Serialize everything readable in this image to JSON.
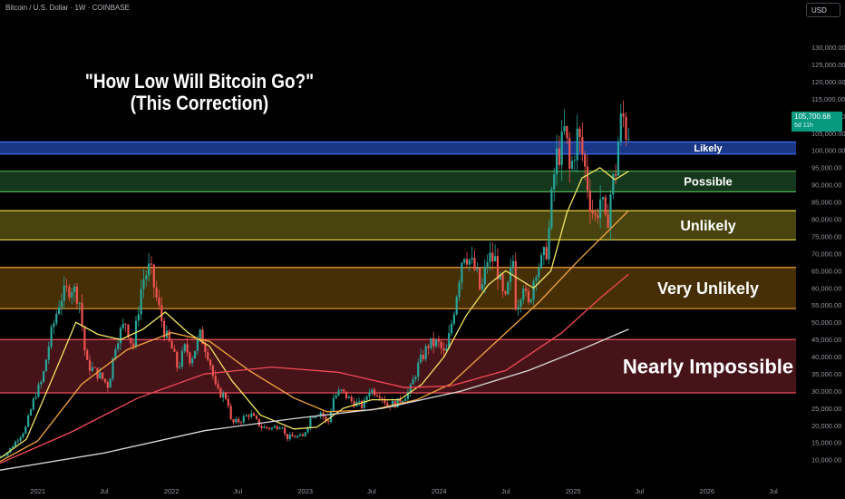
{
  "header": {
    "symbol_text": "Bitcoin / U.S. Dollar · 1W · COINBASE",
    "currency_button": "USD"
  },
  "title_lines": [
    "\"How Low Will Bitcoin Go?\"",
    "(This Correction)"
  ],
  "price_tag": {
    "price": "105,700.68",
    "countdown": "5d 11h"
  },
  "colors": {
    "candle_up": "#26a69a",
    "candle_down": "#ef5350",
    "sma_yellow": "#f5e663",
    "sma_orange": "#f6a640",
    "sma_red": "#f44a57",
    "sma_white": "#d9d9d9",
    "price_tag": "#089981"
  },
  "chart_data": {
    "type": "candlestick",
    "y_axis": {
      "ticks": [
        10000,
        15000,
        20000,
        25000,
        30000,
        35000,
        40000,
        45000,
        50000,
        55000,
        60000,
        65000,
        70000,
        75000,
        80000,
        85000,
        90000,
        95000,
        100000,
        105000,
        110000,
        115000,
        120000,
        125000,
        130000
      ],
      "tick_labels": [
        "10,000.00",
        "15,000.00",
        "20,000.00",
        "25,000.00",
        "30,000.00",
        "35,000.00",
        "40,000.00",
        "45,000.00",
        "50,000.00",
        "55,000.00",
        "60,000.00",
        "65,000.00",
        "70,000.00",
        "75,000.00",
        "80,000.00",
        "85,000.00",
        "90,000.00",
        "95,000.00",
        "100,000.00",
        "105,000.00",
        "110,000.00",
        "115,000.00",
        "120,000.00",
        "125,000.00",
        "130,000.00"
      ],
      "range": [
        6000,
        138000
      ]
    },
    "x_axis": {
      "ticks": [
        "2021-01-01",
        "2021-07-01",
        "2022-01-01",
        "2022-07-01",
        "2023-01-01",
        "2023-07-01",
        "2024-01-01",
        "2024-07-01",
        "2025-01-01",
        "2025-07-01",
        "2026-01-01",
        "2026-07-01"
      ],
      "tick_labels": [
        "2021",
        "Jul",
        "2022",
        "Jul",
        "2023",
        "Jul",
        "2024",
        "Jul",
        "2025",
        "Jul",
        "2026",
        "Jul"
      ],
      "range": [
        "2020-09-20",
        "2026-09-01"
      ]
    },
    "zones": [
      {
        "label": "Likely",
        "low": 99000,
        "high": 102500,
        "fill": "#1a3a8c",
        "border": "#3d6cf0",
        "label_size": 11
      },
      {
        "label": "Possible",
        "low": 88000,
        "high": 94000,
        "fill": "#163a1c",
        "border": "#4caf50",
        "label_size": 13
      },
      {
        "label": "Unlikely",
        "low": 74000,
        "high": 82500,
        "fill": "#4d4810",
        "border": "#e6d33a",
        "label_size": 16
      },
      {
        "label": "Very Unlikely",
        "low": 54000,
        "high": 66000,
        "fill": "#4a3005",
        "border": "#f0a030",
        "label_size": 18
      },
      {
        "label": "Nearly Impossible",
        "low": 29500,
        "high": 45000,
        "fill": "#4a1419",
        "border": "#f05060",
        "label_size": 22
      }
    ],
    "price_path": [
      [
        "2020-09-20",
        10800
      ],
      [
        "2020-10-15",
        11800
      ],
      [
        "2020-11-10",
        15500
      ],
      [
        "2020-12-05",
        19000
      ],
      [
        "2021-01-01",
        29000
      ],
      [
        "2021-01-20",
        33000
      ],
      [
        "2021-02-10",
        45000
      ],
      [
        "2021-03-10",
        57000
      ],
      [
        "2021-04-10",
        60500
      ],
      [
        "2021-05-01",
        57000
      ],
      [
        "2021-05-20",
        38000
      ],
      [
        "2021-06-10",
        36000
      ],
      [
        "2021-07-01",
        34000
      ],
      [
        "2021-07-20",
        31500
      ],
      [
        "2021-08-10",
        45000
      ],
      [
        "2021-09-05",
        50000
      ],
      [
        "2021-09-25",
        42500
      ],
      [
        "2021-10-20",
        62000
      ],
      [
        "2021-11-10",
        66000
      ],
      [
        "2021-11-28",
        57000
      ],
      [
        "2021-12-20",
        47000
      ],
      [
        "2022-01-10",
        42000
      ],
      [
        "2022-01-25",
        36500
      ],
      [
        "2022-02-15",
        43000
      ],
      [
        "2022-03-01",
        39000
      ],
      [
        "2022-03-28",
        46500
      ],
      [
        "2022-04-20",
        40000
      ],
      [
        "2022-05-10",
        30000
      ],
      [
        "2022-06-10",
        28000
      ],
      [
        "2022-06-20",
        20500
      ],
      [
        "2022-07-15",
        21500
      ],
      [
        "2022-08-10",
        23500
      ],
      [
        "2022-09-10",
        19500
      ],
      [
        "2022-10-10",
        19200
      ],
      [
        "2022-11-05",
        20500
      ],
      [
        "2022-11-15",
        16500
      ],
      [
        "2022-12-15",
        16800
      ],
      [
        "2023-01-01",
        16600
      ],
      [
        "2023-01-25",
        23000
      ],
      [
        "2023-02-20",
        24000
      ],
      [
        "2023-03-10",
        20000
      ],
      [
        "2023-03-25",
        28000
      ],
      [
        "2023-04-15",
        30000
      ],
      [
        "2023-05-15",
        27000
      ],
      [
        "2023-06-15",
        25500
      ],
      [
        "2023-07-01",
        30500
      ],
      [
        "2023-08-01",
        29200
      ],
      [
        "2023-08-20",
        26000
      ],
      [
        "2023-09-15",
        26500
      ],
      [
        "2023-10-20",
        30000
      ],
      [
        "2023-11-10",
        37000
      ],
      [
        "2023-12-10",
        43500
      ],
      [
        "2024-01-05",
        44000
      ],
      [
        "2024-01-25",
        40000
      ],
      [
        "2024-02-15",
        52000
      ],
      [
        "2024-03-14",
        71000
      ],
      [
        "2024-04-01",
        68000
      ],
      [
        "2024-04-20",
        64000
      ],
      [
        "2024-05-01",
        58000
      ],
      [
        "2024-05-20",
        69000
      ],
      [
        "2024-06-10",
        68000
      ],
      [
        "2024-07-05",
        55000
      ],
      [
        "2024-07-28",
        68000
      ],
      [
        "2024-08-05",
        54000
      ],
      [
        "2024-08-25",
        62000
      ],
      [
        "2024-09-06",
        53500
      ],
      [
        "2024-09-28",
        66000
      ],
      [
        "2024-10-15",
        67500
      ],
      [
        "2024-10-30",
        72000
      ],
      [
        "2024-11-12",
        88000
      ],
      [
        "2024-11-22",
        98000
      ],
      [
        "2024-12-05",
        100000
      ],
      [
        "2024-12-17",
        106500
      ],
      [
        "2024-12-30",
        93000
      ],
      [
        "2025-01-20",
        105000
      ],
      [
        "2025-02-05",
        97500
      ],
      [
        "2025-02-25",
        84000
      ],
      [
        "2025-03-10",
        80000
      ],
      [
        "2025-03-25",
        87000
      ],
      [
        "2025-04-08",
        76500
      ],
      [
        "2025-04-20",
        87500
      ],
      [
        "2025-05-05",
        95000
      ],
      [
        "2025-05-12",
        104000
      ],
      [
        "2025-05-22",
        111000
      ],
      [
        "2025-06-01",
        105700
      ]
    ],
    "moving_averages": [
      {
        "color": "#f5e663",
        "points": [
          [
            "2020-09-20",
            10500
          ],
          [
            "2020-12-01",
            16000
          ],
          [
            "2021-02-15",
            35000
          ],
          [
            "2021-04-15",
            50000
          ],
          [
            "2021-06-15",
            46500
          ],
          [
            "2021-08-15",
            45000
          ],
          [
            "2021-10-15",
            48000
          ],
          [
            "2021-12-15",
            53000
          ],
          [
            "2022-02-15",
            47000
          ],
          [
            "2022-04-15",
            43000
          ],
          [
            "2022-06-15",
            33000
          ],
          [
            "2022-09-01",
            23000
          ],
          [
            "2022-12-01",
            19000
          ],
          [
            "2023-02-01",
            19500
          ],
          [
            "2023-04-15",
            25000
          ],
          [
            "2023-07-01",
            27500
          ],
          [
            "2023-09-15",
            27500
          ],
          [
            "2023-11-15",
            32000
          ],
          [
            "2024-01-15",
            40000
          ],
          [
            "2024-03-15",
            52000
          ],
          [
            "2024-05-15",
            61000
          ],
          [
            "2024-07-01",
            65000
          ],
          [
            "2024-09-15",
            60000
          ],
          [
            "2024-11-01",
            65000
          ],
          [
            "2024-12-15",
            82000
          ],
          [
            "2025-01-25",
            92000
          ],
          [
            "2025-03-15",
            95000
          ],
          [
            "2025-04-25",
            91500
          ],
          [
            "2025-06-01",
            94000
          ]
        ]
      },
      {
        "color": "#f6a640",
        "points": [
          [
            "2020-09-20",
            9500
          ],
          [
            "2021-01-01",
            15500
          ],
          [
            "2021-05-01",
            32000
          ],
          [
            "2021-09-01",
            42000
          ],
          [
            "2022-01-01",
            47000
          ],
          [
            "2022-04-15",
            44500
          ],
          [
            "2022-08-01",
            36000
          ],
          [
            "2022-12-01",
            28000
          ],
          [
            "2023-03-01",
            24000
          ],
          [
            "2023-07-01",
            24500
          ],
          [
            "2023-11-01",
            27500
          ],
          [
            "2024-02-01",
            32000
          ],
          [
            "2024-06-01",
            44000
          ],
          [
            "2024-10-01",
            56000
          ],
          [
            "2025-01-15",
            68000
          ],
          [
            "2025-04-01",
            76000
          ],
          [
            "2025-06-01",
            82500
          ]
        ]
      },
      {
        "color": "#f44a57",
        "points": [
          [
            "2020-09-20",
            9000
          ],
          [
            "2021-04-01",
            18000
          ],
          [
            "2021-10-01",
            28000
          ],
          [
            "2022-04-01",
            35000
          ],
          [
            "2022-10-01",
            37000
          ],
          [
            "2023-04-01",
            35500
          ],
          [
            "2023-10-01",
            31000
          ],
          [
            "2024-02-01",
            31500
          ],
          [
            "2024-07-01",
            36000
          ],
          [
            "2024-12-01",
            47000
          ],
          [
            "2025-03-15",
            57000
          ],
          [
            "2025-06-01",
            64000
          ]
        ]
      },
      {
        "color": "#d9d9d9",
        "points": [
          [
            "2020-09-20",
            7000
          ],
          [
            "2021-07-01",
            12000
          ],
          [
            "2022-04-01",
            18500
          ],
          [
            "2022-12-01",
            22000
          ],
          [
            "2023-08-01",
            25000
          ],
          [
            "2024-03-01",
            30000
          ],
          [
            "2024-09-01",
            36000
          ],
          [
            "2025-02-01",
            42500
          ],
          [
            "2025-06-01",
            48000
          ]
        ]
      }
    ]
  }
}
